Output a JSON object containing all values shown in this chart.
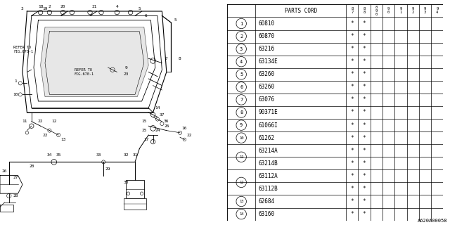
{
  "bg_color": "#ffffff",
  "diagram_code": "A620A00058",
  "table": {
    "header_col": "PARTS CORD",
    "year_cols": [
      "8\n7",
      "8\n8",
      "8\n9\n0",
      "9\n0",
      "9\n1",
      "9\n2",
      "9\n3",
      "9\n4"
    ],
    "rows": [
      {
        "num": "1",
        "code": "60810",
        "stars": [
          1,
          1,
          0,
          0,
          0,
          0,
          0,
          0
        ],
        "span": 1
      },
      {
        "num": "2",
        "code": "60870",
        "stars": [
          1,
          1,
          0,
          0,
          0,
          0,
          0,
          0
        ],
        "span": 1
      },
      {
        "num": "3",
        "code": "63216",
        "stars": [
          1,
          1,
          0,
          0,
          0,
          0,
          0,
          0
        ],
        "span": 1
      },
      {
        "num": "4",
        "code": "63134E",
        "stars": [
          1,
          1,
          0,
          0,
          0,
          0,
          0,
          0
        ],
        "span": 1
      },
      {
        "num": "5",
        "code": "63260",
        "stars": [
          1,
          1,
          0,
          0,
          0,
          0,
          0,
          0
        ],
        "span": 1
      },
      {
        "num": "6",
        "code": "63260",
        "stars": [
          1,
          1,
          0,
          0,
          0,
          0,
          0,
          0
        ],
        "span": 1
      },
      {
        "num": "7",
        "code": "63076",
        "stars": [
          1,
          1,
          0,
          0,
          0,
          0,
          0,
          0
        ],
        "span": 1
      },
      {
        "num": "8",
        "code": "90371E",
        "stars": [
          1,
          1,
          0,
          0,
          0,
          0,
          0,
          0
        ],
        "span": 1
      },
      {
        "num": "9",
        "code": "61066I",
        "stars": [
          1,
          1,
          0,
          0,
          0,
          0,
          0,
          0
        ],
        "span": 1
      },
      {
        "num": "10",
        "code": "61262",
        "stars": [
          1,
          1,
          0,
          0,
          0,
          0,
          0,
          0
        ],
        "span": 1
      },
      {
        "num": "11",
        "code": "63214A",
        "stars": [
          1,
          1,
          0,
          0,
          0,
          0,
          0,
          0
        ],
        "span": 2
      },
      {
        "num": "",
        "code": "63214B",
        "stars": [
          1,
          1,
          0,
          0,
          0,
          0,
          0,
          0
        ],
        "span": 0
      },
      {
        "num": "12",
        "code": "63112A",
        "stars": [
          1,
          1,
          0,
          0,
          0,
          0,
          0,
          0
        ],
        "span": 2
      },
      {
        "num": "",
        "code": "63112B",
        "stars": [
          1,
          1,
          0,
          0,
          0,
          0,
          0,
          0
        ],
        "span": 0
      },
      {
        "num": "13",
        "code": "62684",
        "stars": [
          1,
          1,
          0,
          0,
          0,
          0,
          0,
          0
        ],
        "span": 1
      },
      {
        "num": "14",
        "code": "63160",
        "stars": [
          1,
          1,
          0,
          0,
          0,
          0,
          0,
          0
        ],
        "span": 1
      }
    ]
  }
}
